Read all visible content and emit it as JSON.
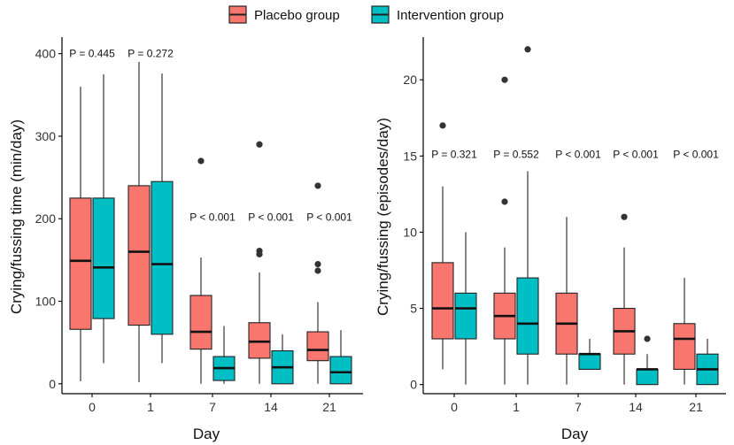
{
  "legend": {
    "items": [
      {
        "label": "Placebo group",
        "color": "#F8766D"
      },
      {
        "label": "Intervention group",
        "color": "#00BFC4"
      }
    ]
  },
  "chart_data": [
    {
      "type": "box",
      "title": "",
      "xlabel": "Day",
      "ylabel": "Crying/fussing time (min/day)",
      "categories": [
        "0",
        "1",
        "7",
        "14",
        "21"
      ],
      "ylim": [
        -12,
        420
      ],
      "yticks": [
        0,
        100,
        200,
        300,
        400
      ],
      "pvalues": [
        "P = 0.445",
        "P = 0.272",
        "P < 0.001",
        "P < 0.001",
        "P < 0.001"
      ],
      "pvalue_y": [
        400,
        400,
        202,
        202,
        202
      ],
      "series": [
        {
          "name": "Placebo group",
          "color": "#F8766D",
          "boxes": [
            {
              "min": 3,
              "q1": 66,
              "median": 149,
              "q3": 225,
              "max": 360,
              "outliers": []
            },
            {
              "min": 2,
              "q1": 71,
              "median": 160,
              "q3": 240,
              "max": 390,
              "outliers": []
            },
            {
              "min": 0,
              "q1": 42,
              "median": 63,
              "q3": 107,
              "max": 153,
              "outliers": [
                270
              ]
            },
            {
              "min": 0,
              "q1": 31,
              "median": 51,
              "q3": 74,
              "max": 135,
              "outliers": [
                290,
                161,
                157
              ]
            },
            {
              "min": 0,
              "q1": 28,
              "median": 41,
              "q3": 63,
              "max": 99,
              "outliers": [
                240,
                145,
                137
              ]
            }
          ]
        },
        {
          "name": "Intervention group",
          "color": "#00BFC4",
          "boxes": [
            {
              "min": 25,
              "q1": 79,
              "median": 141,
              "q3": 225,
              "max": 375,
              "outliers": []
            },
            {
              "min": 25,
              "q1": 60,
              "median": 145,
              "q3": 245,
              "max": 376,
              "outliers": []
            },
            {
              "min": 0,
              "q1": 4,
              "median": 19,
              "q3": 33,
              "max": 70,
              "outliers": []
            },
            {
              "min": 0,
              "q1": 0,
              "median": 20,
              "q3": 40,
              "max": 60,
              "outliers": []
            },
            {
              "min": 0,
              "q1": 0,
              "median": 14,
              "q3": 33,
              "max": 65,
              "outliers": []
            }
          ]
        }
      ]
    },
    {
      "type": "box",
      "title": "",
      "xlabel": "Day",
      "ylabel": "Crying/fussing (episodes/day)",
      "categories": [
        "0",
        "1",
        "7",
        "14",
        "21"
      ],
      "ylim": [
        -0.6,
        22.8
      ],
      "yticks": [
        0,
        5,
        10,
        15,
        20
      ],
      "pvalues": [
        "P = 0.321",
        "P = 0.552",
        "P < 0.001",
        "P < 0.001",
        "P < 0.001"
      ],
      "pvalue_y": [
        15.1,
        15.1,
        15.1,
        15.1,
        15.1
      ],
      "series": [
        {
          "name": "Placebo group",
          "color": "#F8766D",
          "boxes": [
            {
              "min": 1,
              "q1": 3,
              "median": 5,
              "q3": 8,
              "max": 13,
              "outliers": [
                17
              ]
            },
            {
              "min": 0,
              "q1": 3,
              "median": 4.5,
              "q3": 6,
              "max": 9,
              "outliers": [
                20,
                12
              ]
            },
            {
              "min": 0,
              "q1": 2,
              "median": 4,
              "q3": 6,
              "max": 11,
              "outliers": []
            },
            {
              "min": 0,
              "q1": 2,
              "median": 3.5,
              "q3": 5,
              "max": 9,
              "outliers": [
                11
              ]
            },
            {
              "min": 0,
              "q1": 1,
              "median": 3,
              "q3": 4,
              "max": 7,
              "outliers": []
            }
          ]
        },
        {
          "name": "Intervention group",
          "color": "#00BFC4",
          "boxes": [
            {
              "min": 0,
              "q1": 3,
              "median": 5,
              "q3": 6,
              "max": 10,
              "outliers": []
            },
            {
              "min": 0,
              "q1": 2,
              "median": 4,
              "q3": 7,
              "max": 14,
              "outliers": [
                22
              ]
            },
            {
              "min": 1,
              "q1": 1,
              "median": 2,
              "q3": 2,
              "max": 3,
              "outliers": []
            },
            {
              "min": 0,
              "q1": 0,
              "median": 1,
              "q3": 1,
              "max": 2,
              "outliers": [
                3
              ]
            },
            {
              "min": 0,
              "q1": 0,
              "median": 1,
              "q3": 2,
              "max": 3,
              "outliers": []
            }
          ]
        }
      ]
    }
  ]
}
